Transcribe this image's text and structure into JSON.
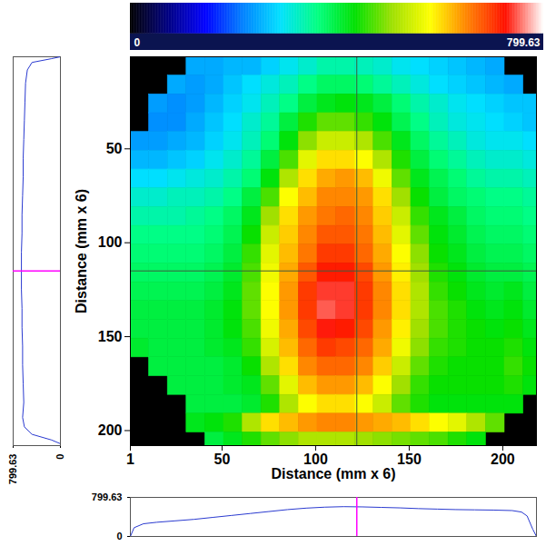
{
  "chart_data": {
    "type": "heatmap",
    "xlabel": "Distance (mm x 6)",
    "ylabel": "Distance (mm x 6)",
    "xlim": [
      1,
      218
    ],
    "ylim": [
      1,
      208
    ],
    "xticks": [
      1,
      50,
      100,
      150,
      200
    ],
    "yticks": [
      50,
      100,
      150,
      200
    ],
    "x_edges": [
      1,
      11,
      21,
      31,
      41,
      51,
      61,
      71,
      81,
      91,
      101,
      111,
      121,
      131,
      141,
      151,
      161,
      171,
      181,
      191,
      201,
      211,
      218
    ],
    "y_edges": [
      1,
      11,
      21,
      31,
      41,
      51,
      61,
      71,
      81,
      91,
      101,
      111,
      121,
      131,
      141,
      151,
      161,
      171,
      181,
      191,
      201,
      208
    ],
    "cells": [
      [
        null,
        null,
        null,
        250,
        250,
        260,
        260,
        280,
        300,
        320,
        340,
        340,
        330,
        320,
        300,
        290,
        280,
        270,
        260,
        250,
        null,
        null
      ],
      [
        null,
        null,
        250,
        240,
        250,
        270,
        290,
        310,
        330,
        360,
        380,
        380,
        370,
        350,
        330,
        310,
        290,
        280,
        270,
        260,
        250,
        null
      ],
      [
        null,
        240,
        230,
        240,
        260,
        280,
        300,
        330,
        360,
        400,
        420,
        430,
        420,
        400,
        370,
        340,
        320,
        300,
        290,
        280,
        270,
        270
      ],
      [
        null,
        230,
        230,
        250,
        270,
        290,
        320,
        350,
        400,
        450,
        480,
        480,
        460,
        430,
        390,
        360,
        330,
        310,
        300,
        290,
        280,
        270
      ],
      [
        240,
        240,
        250,
        260,
        280,
        300,
        330,
        370,
        430,
        500,
        540,
        540,
        520,
        470,
        420,
        380,
        350,
        330,
        310,
        300,
        300,
        290
      ],
      [
        260,
        260,
        270,
        280,
        300,
        320,
        350,
        400,
        470,
        560,
        600,
        600,
        580,
        520,
        450,
        400,
        370,
        350,
        330,
        320,
        320,
        310
      ],
      [
        290,
        290,
        300,
        310,
        320,
        340,
        370,
        430,
        520,
        600,
        630,
        640,
        620,
        570,
        480,
        420,
        390,
        370,
        350,
        340,
        340,
        330
      ],
      [
        320,
        320,
        330,
        330,
        340,
        360,
        400,
        470,
        580,
        620,
        650,
        650,
        640,
        600,
        510,
        440,
        400,
        380,
        370,
        360,
        360,
        350
      ],
      [
        340,
        340,
        340,
        350,
        360,
        380,
        420,
        510,
        600,
        640,
        660,
        670,
        650,
        610,
        540,
        460,
        420,
        400,
        380,
        370,
        370,
        360
      ],
      [
        360,
        360,
        360,
        360,
        370,
        390,
        440,
        540,
        610,
        650,
        680,
        680,
        660,
        620,
        560,
        480,
        430,
        410,
        390,
        380,
        380,
        370
      ],
      [
        370,
        370,
        370,
        370,
        380,
        400,
        460,
        560,
        620,
        660,
        700,
        700,
        670,
        630,
        580,
        500,
        440,
        420,
        400,
        390,
        390,
        380
      ],
      [
        380,
        380,
        380,
        380,
        390,
        410,
        470,
        570,
        630,
        680,
        720,
        720,
        690,
        640,
        590,
        510,
        450,
        430,
        410,
        400,
        400,
        390
      ],
      [
        390,
        390,
        390,
        390,
        400,
        420,
        480,
        580,
        640,
        700,
        740,
        740,
        700,
        650,
        600,
        520,
        460,
        440,
        420,
        410,
        420,
        400
      ],
      [
        400,
        400,
        400,
        400,
        410,
        430,
        480,
        580,
        640,
        700,
        750,
        740,
        700,
        650,
        600,
        520,
        470,
        450,
        430,
        420,
        430,
        410
      ],
      [
        400,
        400,
        400,
        400,
        410,
        430,
        470,
        570,
        630,
        690,
        730,
        720,
        690,
        640,
        590,
        510,
        470,
        450,
        440,
        430,
        440,
        420
      ],
      [
        410,
        400,
        400,
        400,
        410,
        420,
        460,
        550,
        620,
        670,
        700,
        690,
        670,
        630,
        570,
        500,
        460,
        450,
        440,
        440,
        450,
        430
      ],
      [
        null,
        400,
        400,
        400,
        400,
        410,
        440,
        520,
        600,
        650,
        670,
        670,
        650,
        610,
        540,
        480,
        450,
        440,
        440,
        440,
        460,
        440
      ],
      [
        null,
        null,
        400,
        400,
        400,
        410,
        420,
        480,
        560,
        620,
        640,
        640,
        620,
        580,
        510,
        460,
        440,
        440,
        440,
        440,
        450,
        430
      ],
      [
        null,
        null,
        null,
        400,
        400,
        400,
        410,
        450,
        520,
        580,
        600,
        600,
        580,
        540,
        480,
        450,
        430,
        430,
        430,
        430,
        430,
        null
      ],
      [
        null,
        null,
        null,
        420,
        430,
        450,
        520,
        600,
        620,
        640,
        650,
        650,
        640,
        630,
        620,
        600,
        580,
        560,
        520,
        480,
        null,
        null
      ],
      [
        null,
        null,
        null,
        null,
        400,
        420,
        450,
        480,
        500,
        520,
        520,
        520,
        510,
        500,
        490,
        480,
        470,
        450,
        430,
        null,
        null,
        null
      ]
    ],
    "colorbar": {
      "range": [
        0,
        799.63
      ],
      "ticks": [
        0,
        799.63
      ],
      "colors": [
        "#000000",
        "#000080",
        "#0000ff",
        "#0080ff",
        "#00e0ff",
        "#00ff80",
        "#00e000",
        "#a0e000",
        "#ffff00",
        "#ff8000",
        "#ff1000",
        "#ffffff"
      ]
    },
    "crosshair": {
      "x": 122,
      "y": 115
    },
    "column_profile": {
      "color": "#2a3ad0",
      "lim": [
        0,
        799.63
      ],
      "ticks": [
        0,
        799.63
      ],
      "y": [
        1,
        2,
        4,
        8,
        15,
        25,
        35,
        45,
        55,
        65,
        75,
        85,
        95,
        105,
        115,
        125,
        135,
        145,
        155,
        165,
        175,
        185,
        193,
        198,
        202,
        205,
        207
      ],
      "values": [
        0,
        150,
        480,
        560,
        590,
        600,
        610,
        620,
        630,
        630,
        640,
        650,
        650,
        660,
        660,
        660,
        650,
        650,
        640,
        640,
        630,
        620,
        640,
        610,
        480,
        150,
        0
      ]
    },
    "row_profile": {
      "color": "#2a3ad0",
      "lim": [
        0,
        799.63
      ],
      "ticks": [
        0,
        799.63
      ],
      "x": [
        1,
        3,
        8,
        15,
        25,
        35,
        45,
        55,
        65,
        75,
        85,
        95,
        105,
        115,
        125,
        135,
        145,
        155,
        165,
        175,
        185,
        195,
        205,
        210,
        213,
        216,
        218
      ],
      "values": [
        0,
        180,
        260,
        290,
        320,
        350,
        390,
        430,
        470,
        510,
        550,
        580,
        600,
        610,
        605,
        595,
        585,
        570,
        560,
        550,
        545,
        540,
        530,
        500,
        420,
        150,
        0
      ]
    }
  }
}
